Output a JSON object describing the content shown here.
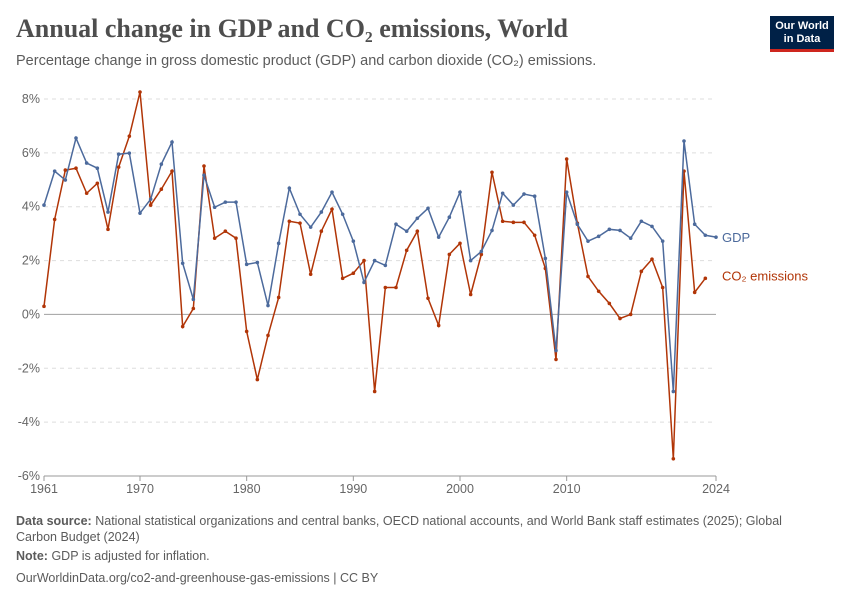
{
  "header": {
    "title": "Annual change in GDP and CO₂ emissions, World",
    "subtitle": "Percentage change in gross domestic product (GDP) and carbon dioxide (CO₂) emissions.",
    "logo": "Our World in Data"
  },
  "footer": {
    "source_label": "Data source:",
    "source": "National statistical organizations and central banks, OECD national accounts, and World Bank staff estimates (2025); Global Carbon Budget (2024)",
    "note_label": "Note:",
    "note": "GDP is adjusted for inflation.",
    "url": "OurWorldinData.org/co2-and-greenhouse-gas-emissions | CC BY"
  },
  "chart_data": {
    "type": "line",
    "title": "Annual change in GDP and CO₂ emissions, World",
    "xlim": [
      1961,
      2024
    ],
    "ylim": [
      -6,
      8
    ],
    "x_ticks": [
      "1961",
      "1970",
      "1980",
      "1990",
      "2000",
      "2010",
      "2024"
    ],
    "y_ticks": [
      "-6%",
      "-4%",
      "-2%",
      "0%",
      "2%",
      "4%",
      "6%",
      "8%"
    ],
    "grid": true,
    "legend": "right-inline labels",
    "x_start": 1961,
    "series": [
      {
        "name": "GDP",
        "color": "#4c6a9c",
        "values": [
          4.06,
          5.32,
          4.99,
          6.55,
          5.62,
          5.43,
          3.8,
          5.95,
          5.99,
          3.76,
          4.28,
          5.58,
          6.4,
          1.9,
          0.56,
          5.17,
          3.98,
          4.17,
          4.17,
          1.86,
          1.93,
          0.33,
          2.64,
          4.69,
          3.72,
          3.24,
          3.8,
          4.54,
          3.72,
          2.72,
          1.19,
          2.0,
          1.82,
          3.35,
          3.09,
          3.57,
          3.94,
          2.87,
          3.61,
          4.54,
          2.0,
          2.34,
          3.12,
          4.5,
          4.06,
          4.47,
          4.39,
          2.08,
          -1.34,
          4.54,
          3.35,
          2.72,
          2.9,
          3.16,
          3.12,
          2.83,
          3.46,
          3.27,
          2.72,
          -2.86,
          6.44,
          3.35,
          2.94,
          2.87
        ]
      },
      {
        "name": "CO₂ emissions",
        "color": "#b13507",
        "values": [
          0.3,
          3.53,
          5.36,
          5.43,
          4.5,
          4.87,
          3.16,
          5.47,
          6.62,
          8.26,
          4.06,
          4.65,
          5.32,
          -0.45,
          0.22,
          5.51,
          2.83,
          3.09,
          2.83,
          -0.63,
          -2.42,
          -0.78,
          0.63,
          3.46,
          3.39,
          1.49,
          3.09,
          3.91,
          1.34,
          1.53,
          2.0,
          -2.86,
          1.0,
          1.0,
          2.38,
          3.09,
          0.6,
          -0.41,
          2.23,
          2.64,
          0.74,
          2.23,
          5.28,
          3.46,
          3.42,
          3.42,
          2.94,
          1.71,
          -1.67,
          5.77,
          3.39,
          1.41,
          0.86,
          0.41,
          -0.15,
          0.0,
          1.6,
          2.05,
          1.0,
          -5.36,
          5.32,
          0.82,
          1.34
        ]
      }
    ]
  }
}
